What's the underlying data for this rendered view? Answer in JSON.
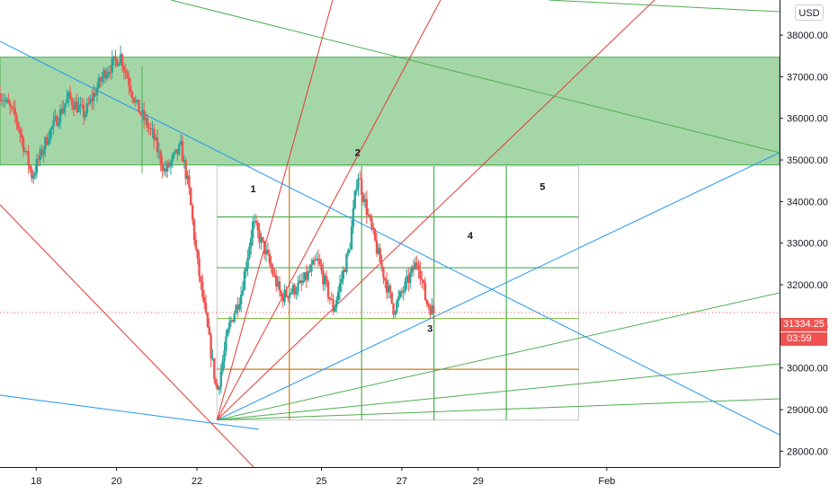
{
  "currency": "USD",
  "last_price": "31334.25",
  "countdown": "03:59",
  "colors": {
    "up": "#26a69a",
    "down": "#ef5350",
    "zone": "#a5d6a7",
    "red_line": "#e53935",
    "blue_line": "#2196f3",
    "green_line": "#4caf50",
    "orange_line": "#c47f17",
    "price_line": "#ef5350"
  },
  "chart_data": {
    "type": "candlestick",
    "x_ticks": [
      "18",
      "20",
      "22",
      "25",
      "27",
      "29",
      "Feb"
    ],
    "y_ticks": [
      "28000.00",
      "29000.00",
      "30000.00",
      "31000.00",
      "32000.00",
      "33000.00",
      "34000.00",
      "35000.00",
      "36000.00",
      "37000.00",
      "38000.00"
    ],
    "ylim": [
      27900,
      38800
    ],
    "xlim": [
      17.1,
      36.5
    ],
    "series_close_anchors": [
      {
        "t": 17.1,
        "p": 36600
      },
      {
        "t": 17.5,
        "p": 36000
      },
      {
        "t": 17.9,
        "p": 34600
      },
      {
        "t": 18.3,
        "p": 35600
      },
      {
        "t": 18.8,
        "p": 36500
      },
      {
        "t": 19.2,
        "p": 36100
      },
      {
        "t": 19.7,
        "p": 37100
      },
      {
        "t": 20.1,
        "p": 37500
      },
      {
        "t": 20.5,
        "p": 36300
      },
      {
        "t": 20.9,
        "p": 35600
      },
      {
        "t": 21.2,
        "p": 34700
      },
      {
        "t": 21.6,
        "p": 35300
      },
      {
        "t": 21.8,
        "p": 34300
      },
      {
        "t": 22.0,
        "p": 32600
      },
      {
        "t": 22.3,
        "p": 30700
      },
      {
        "t": 22.5,
        "p": 29400
      },
      {
        "t": 22.8,
        "p": 31000
      },
      {
        "t": 23.1,
        "p": 31800
      },
      {
        "t": 23.4,
        "p": 33500
      },
      {
        "t": 23.7,
        "p": 32800
      },
      {
        "t": 24.1,
        "p": 31700
      },
      {
        "t": 24.6,
        "p": 32000
      },
      {
        "t": 25.0,
        "p": 32600
      },
      {
        "t": 25.4,
        "p": 31400
      },
      {
        "t": 25.8,
        "p": 32900
      },
      {
        "t": 26.0,
        "p": 34700
      },
      {
        "t": 26.3,
        "p": 33500
      },
      {
        "t": 26.6,
        "p": 32400
      },
      {
        "t": 26.9,
        "p": 31400
      },
      {
        "t": 27.2,
        "p": 32000
      },
      {
        "t": 27.5,
        "p": 32600
      },
      {
        "t": 27.7,
        "p": 31600
      },
      {
        "t": 27.9,
        "p": 31330
      }
    ],
    "annotations": [
      {
        "label": "1",
        "t": 23.4,
        "p": 34220
      },
      {
        "label": "2",
        "t": 26.0,
        "p": 35100
      },
      {
        "label": "3",
        "t": 27.8,
        "p": 30870
      },
      {
        "label": "4",
        "t": 28.8,
        "p": 33100
      },
      {
        "label": "5",
        "t": 30.6,
        "p": 34280
      }
    ],
    "resistance_zone": {
      "from": 34880,
      "to": 37470
    },
    "grid_box": {
      "t_from": 22.5,
      "t_to": 31.5,
      "p_from": 28750,
      "p_to": 34850
    }
  }
}
